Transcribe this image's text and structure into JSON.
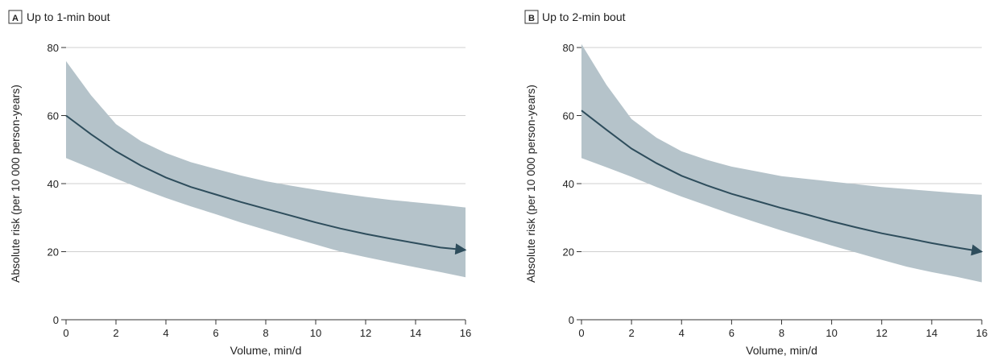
{
  "chart_data": [
    {
      "type": "line",
      "panel_tag": "A",
      "title": "Up to 1-min bout",
      "xlabel": "Volume, min/d",
      "ylabel": "Absolute risk (per 10 000 person-years)",
      "xlim": [
        0,
        16
      ],
      "ylim": [
        0,
        80
      ],
      "xticks": [
        "0",
        "2",
        "4",
        "6",
        "8",
        "10",
        "12",
        "14",
        "16"
      ],
      "yticks": [
        "0",
        "20",
        "40",
        "60",
        "80"
      ],
      "grid": "horizontal",
      "line_color": "#2e4d5c",
      "band_color": "#b5c3ca",
      "series": [
        {
          "x": [
            0,
            1,
            2,
            3,
            4,
            5,
            6,
            7,
            8,
            9,
            10,
            11,
            12,
            13,
            14,
            15,
            16
          ],
          "y": [
            60,
            54.5,
            49.5,
            45.3,
            41.8,
            39,
            36.8,
            34.6,
            32.6,
            30.6,
            28.6,
            26.8,
            25.2,
            23.8,
            22.5,
            21.2,
            20.5
          ],
          "lower": [
            47.5,
            44.5,
            41.5,
            38.5,
            35.8,
            33.3,
            31,
            28.6,
            26.4,
            24.2,
            22.1,
            20,
            18.4,
            16.9,
            15.4,
            14,
            12.5
          ],
          "upper": [
            76,
            66,
            57.5,
            52.5,
            49,
            46.3,
            44.3,
            42.4,
            40.7,
            39.4,
            38.2,
            37.1,
            36.1,
            35.2,
            34.5,
            33.8,
            33
          ]
        }
      ]
    },
    {
      "type": "line",
      "panel_tag": "B",
      "title": "Up to 2-min bout",
      "xlabel": "Volume, min/d",
      "ylabel": "Absolute risk (per 10 000 person-years)",
      "xlim": [
        0,
        16
      ],
      "ylim": [
        0,
        80
      ],
      "xticks": [
        "0",
        "2",
        "4",
        "6",
        "8",
        "10",
        "12",
        "14",
        "16"
      ],
      "yticks": [
        "0",
        "20",
        "40",
        "60",
        "80"
      ],
      "grid": "horizontal",
      "line_color": "#2e4d5c",
      "band_color": "#b5c3ca",
      "series": [
        {
          "x": [
            0,
            1,
            2,
            3,
            4,
            5,
            6,
            7,
            8,
            9,
            10,
            11,
            12,
            13,
            14,
            15,
            16
          ],
          "y": [
            61.5,
            55.8,
            50.3,
            46,
            42.3,
            39.5,
            37,
            34.9,
            32.8,
            30.9,
            28.9,
            27.1,
            25.4,
            24,
            22.5,
            21.2,
            20
          ],
          "lower": [
            47.5,
            44.8,
            42,
            39,
            36.2,
            33.6,
            31,
            28.6,
            26.2,
            24,
            21.8,
            19.7,
            17.6,
            15.6,
            14,
            12.6,
            11
          ],
          "upper": [
            81,
            69,
            59,
            53.5,
            49.5,
            47,
            45,
            43.6,
            42.2,
            41.4,
            40.6,
            39.8,
            39,
            38.4,
            37.8,
            37.2,
            36.7
          ]
        }
      ]
    }
  ]
}
